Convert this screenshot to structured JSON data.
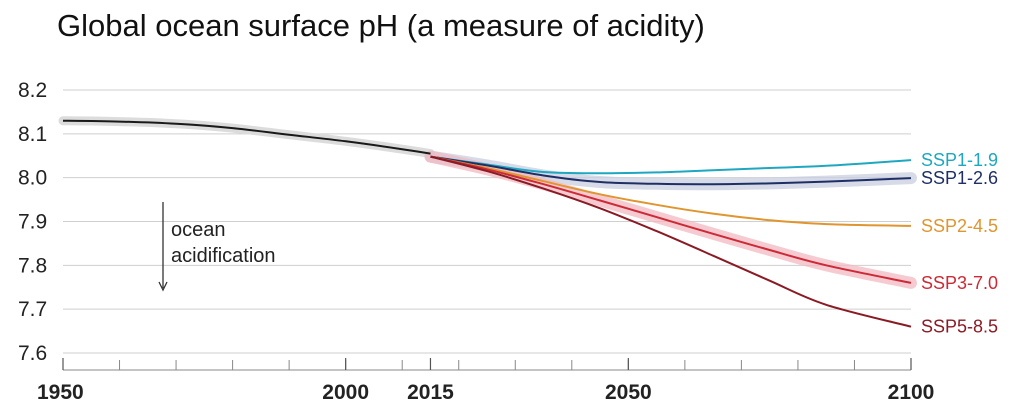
{
  "chart_data": {
    "type": "line",
    "title": "Global ocean surface pH (a measure of acidity)",
    "xlabel": "",
    "ylabel": "",
    "xlim": [
      1950,
      2100
    ],
    "ylim": [
      7.6,
      8.2
    ],
    "x_ticks": [
      1950,
      2000,
      2015,
      2050,
      2100
    ],
    "y_ticks": [
      "7.6",
      "7.7",
      "7.8",
      "7.9",
      "8.0",
      "8.1",
      "8.2"
    ],
    "grid": true,
    "annotation": {
      "lines": [
        "ocean",
        "acidification"
      ],
      "arrow": "down"
    },
    "series": [
      {
        "name": "",
        "color": "#1a1a1a",
        "band": false,
        "x": [
          1950,
          1960,
          1970,
          1980,
          1990,
          2000,
          2010,
          2015
        ],
        "y": [
          8.13,
          8.128,
          8.123,
          8.113,
          8.098,
          8.083,
          8.065,
          8.055
        ]
      },
      {
        "name": "SSP1-1.9",
        "color": "#1ea7c0",
        "band": false,
        "x": [
          2015,
          2025,
          2035,
          2045,
          2055,
          2065,
          2075,
          2085,
          2100
        ],
        "y": [
          8.048,
          8.03,
          8.013,
          8.01,
          8.012,
          8.017,
          8.022,
          8.027,
          8.04
        ]
      },
      {
        "name": "SSP1-2.6",
        "color": "#1f2f66",
        "band": true,
        "x": [
          2015,
          2025,
          2035,
          2045,
          2055,
          2065,
          2075,
          2085,
          2100
        ],
        "y": [
          8.048,
          8.028,
          8.005,
          7.99,
          7.986,
          7.985,
          7.987,
          7.991,
          7.999
        ]
      },
      {
        "name": "SSP2-4.5",
        "color": "#e0952f",
        "band": false,
        "x": [
          2015,
          2025,
          2035,
          2045,
          2055,
          2065,
          2075,
          2085,
          2100
        ],
        "y": [
          8.048,
          8.022,
          7.992,
          7.962,
          7.938,
          7.918,
          7.903,
          7.894,
          7.89
        ]
      },
      {
        "name": "SSP3-7.0",
        "color": "#cc2a36",
        "band": true,
        "x": [
          2015,
          2025,
          2035,
          2045,
          2055,
          2065,
          2075,
          2085,
          2100
        ],
        "y": [
          8.048,
          8.019,
          7.985,
          7.948,
          7.91,
          7.872,
          7.835,
          7.8,
          7.76
        ]
      },
      {
        "name": "SSP5-8.5",
        "color": "#8a1a24",
        "band": false,
        "x": [
          2015,
          2025,
          2035,
          2045,
          2055,
          2065,
          2075,
          2085,
          2100
        ],
        "y": [
          8.048,
          8.015,
          7.975,
          7.93,
          7.878,
          7.822,
          7.765,
          7.71,
          7.66
        ]
      }
    ]
  }
}
